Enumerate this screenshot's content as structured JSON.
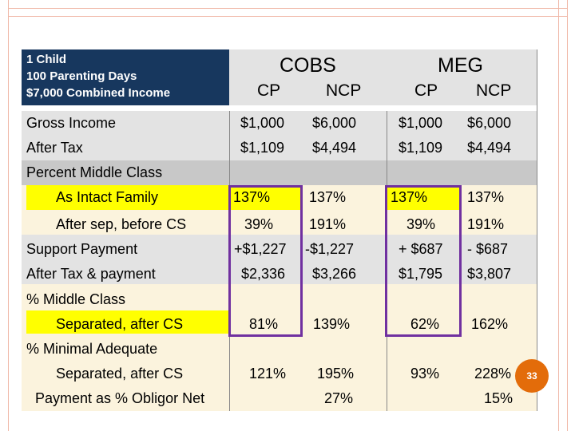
{
  "header": {
    "line1": "1 Child",
    "line2": "100 Parenting Days",
    "line3": "$7,000 Combined Income"
  },
  "groups": {
    "cobs": "COBS",
    "meg": "MEG",
    "cp": "CP",
    "ncp": "NCP"
  },
  "rows": {
    "gross_income": {
      "label": "Gross Income",
      "values": [
        "$1,000",
        "$6,000",
        "$1,000",
        "$6,000"
      ]
    },
    "after_tax": {
      "label": "After Tax",
      "values": [
        "$1,109",
        "$4,494",
        "$1,109",
        "$4,494"
      ]
    },
    "percent_middle_class": {
      "label": "Percent Middle Class"
    },
    "as_intact_family": {
      "label": "As Intact Family",
      "values": [
        "137%",
        "137%",
        "137%",
        "137%"
      ]
    },
    "after_sep_before_cs": {
      "label": "After sep, before CS",
      "values": [
        "39%",
        "191%",
        "39%",
        "191%"
      ]
    },
    "support_payment": {
      "label": "Support Payment",
      "values": [
        "+$1,227",
        "-$1,227",
        "+ $687",
        "- $687"
      ]
    },
    "after_tax_payment": {
      "label": "After Tax & payment",
      "values": [
        "$2,336",
        "$3,266",
        "$1,795",
        "$3,807"
      ]
    },
    "pct_middle_class": {
      "label": "% Middle Class"
    },
    "separated_after_cs_1": {
      "label": "Separated, after CS",
      "values": [
        "81%",
        "139%",
        "62%",
        "162%"
      ]
    },
    "pct_minimal_adequate": {
      "label": "% Minimal Adequate"
    },
    "separated_after_cs_2": {
      "label": "Separated, after CS",
      "values": [
        "121%",
        "195%",
        "93%",
        "228%"
      ]
    },
    "payment_pct_obligor": {
      "label": "Payment as % Obligor Net",
      "values": [
        "27%",
        "15%"
      ]
    }
  },
  "slide_number": "33",
  "colors": {
    "header_bg": "#17375e",
    "highlight_yellow": "#ffff00",
    "cream": "#fbf3dd",
    "grey": "#e3e3e3",
    "purple_box": "#7030a0",
    "badge": "#e36c0a"
  }
}
